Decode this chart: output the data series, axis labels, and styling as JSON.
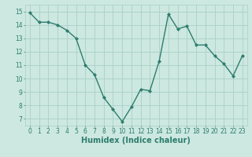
{
  "x": [
    0,
    1,
    2,
    3,
    4,
    5,
    6,
    7,
    8,
    9,
    10,
    11,
    12,
    13,
    14,
    15,
    16,
    17,
    18,
    19,
    20,
    21,
    22,
    23
  ],
  "y": [
    14.9,
    14.2,
    14.2,
    14.0,
    13.6,
    13.0,
    11.0,
    10.3,
    8.6,
    7.7,
    6.8,
    7.9,
    9.2,
    9.1,
    11.3,
    14.8,
    13.7,
    13.9,
    12.5,
    12.5,
    11.7,
    11.1,
    10.2,
    11.7
  ],
  "line_color": "#2e7d6e",
  "marker": "D",
  "marker_size": 2,
  "bg_color": "#cce8e0",
  "grid_color": "#aacfc8",
  "xlabel": "Humidex (Indice chaleur)",
  "xlim": [
    -0.5,
    23.5
  ],
  "ylim": [
    6.5,
    15.5
  ],
  "yticks": [
    7,
    8,
    9,
    10,
    11,
    12,
    13,
    14,
    15
  ],
  "xticks": [
    0,
    1,
    2,
    3,
    4,
    5,
    6,
    7,
    8,
    9,
    10,
    11,
    12,
    13,
    14,
    15,
    16,
    17,
    18,
    19,
    20,
    21,
    22,
    23
  ],
  "tick_label_fontsize": 5.5,
  "xlabel_fontsize": 7,
  "line_width": 1.0
}
